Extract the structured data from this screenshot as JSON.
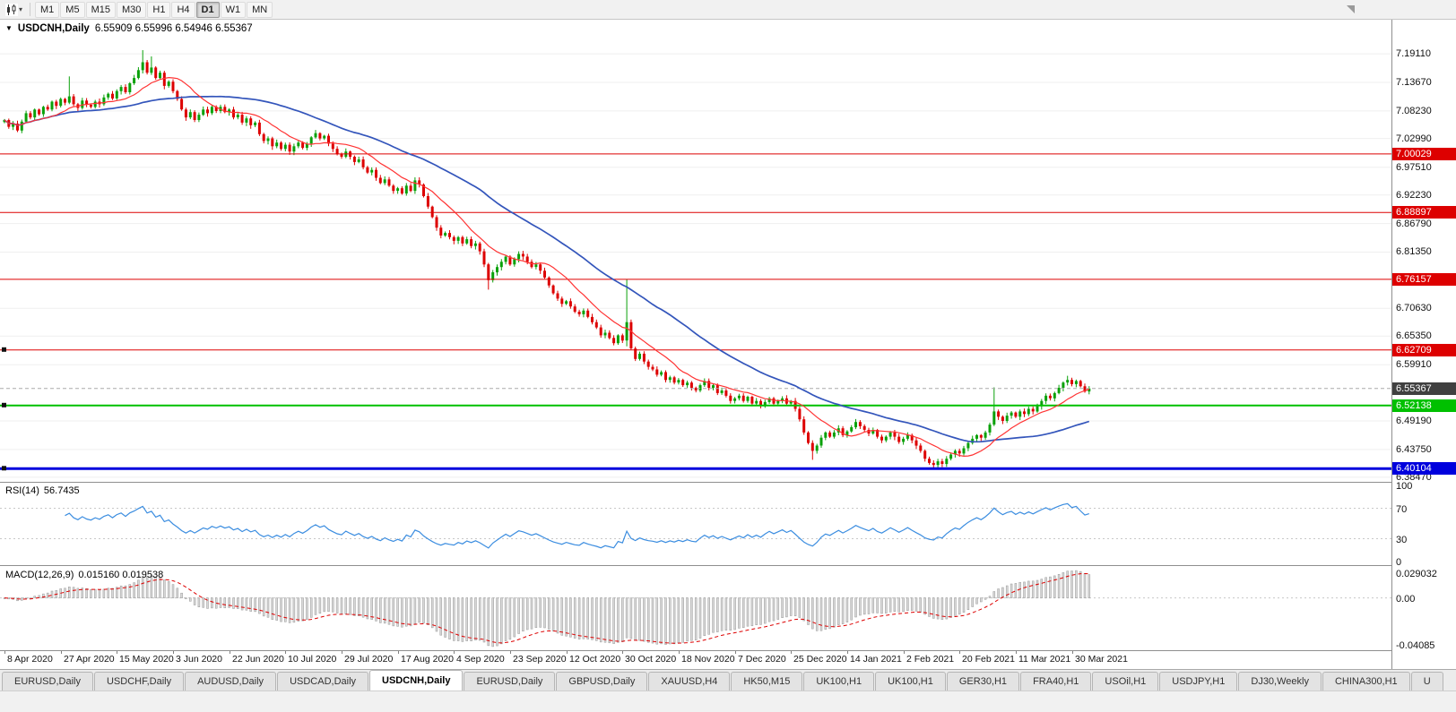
{
  "toolbar": {
    "timeframes": [
      {
        "label": "M1",
        "active": false
      },
      {
        "label": "M5",
        "active": false
      },
      {
        "label": "M15",
        "active": false
      },
      {
        "label": "M30",
        "active": false
      },
      {
        "label": "H1",
        "active": false
      },
      {
        "label": "H4",
        "active": false
      },
      {
        "label": "D1",
        "active": true
      },
      {
        "label": "W1",
        "active": false
      },
      {
        "label": "MN",
        "active": false
      }
    ]
  },
  "chart": {
    "symbol_title": "USDCNH,Daily",
    "ohlc_line": "6.55909 6.55996 6.54946 6.55367",
    "current_price": "6.55367",
    "price_axis_labels": [
      "7.19110",
      "7.13670",
      "7.08230",
      "7.02990",
      "6.97510",
      "6.92230",
      "6.86790",
      "6.81350",
      "6.70630",
      "6.65350",
      "6.59910",
      "6.49190",
      "6.43750",
      "6.38470"
    ],
    "hlines": [
      {
        "label": "7.00029",
        "price": 7.00029,
        "color": "#dd0000",
        "width": 1,
        "handle": false
      },
      {
        "label": "6.88897",
        "price": 6.88897,
        "color": "#dd0000",
        "width": 1,
        "handle": false
      },
      {
        "label": "6.76157",
        "price": 6.76157,
        "color": "#dd0000",
        "width": 1,
        "handle": false
      },
      {
        "label": "6.62709",
        "price": 6.62709,
        "color": "#dd0000",
        "width": 1,
        "handle": true
      },
      {
        "label": "6.52138",
        "price": 6.52138,
        "color": "#00c000",
        "width": 2,
        "handle": true
      },
      {
        "label": "6.40104",
        "price": 6.40104,
        "color": "#0000dd",
        "width": 3,
        "handle": true
      }
    ],
    "colors": {
      "up": "#0aa10a",
      "down": "#dd0000",
      "ma_fast": "#ff3333",
      "ma_slow": "#3355bb",
      "rsi": "#3b8de0",
      "macd_hist_fill": "#d8d8d8",
      "macd_hist_stroke": "#979797",
      "macd_signal": "#dd0000",
      "current_badge_bg": "#404040"
    }
  },
  "chart_data": {
    "type": "candlestick",
    "title": "USDCNH,Daily",
    "x_labels": [
      "8 Apr 2020",
      "27 Apr 2020",
      "15 May 2020",
      "3 Jun 2020",
      "22 Jun 2020",
      "10 Jul 2020",
      "29 Jul 2020",
      "17 Aug 2020",
      "4 Sep 2020",
      "23 Sep 2020",
      "12 Oct 2020",
      "30 Oct 2020",
      "18 Nov 2020",
      "7 Dec 2020",
      "25 Dec 2020",
      "14 Jan 2021",
      "2 Feb 2021",
      "20 Feb 2021",
      "11 Mar 2021",
      "30 Mar 2021"
    ],
    "bars_per_label": 13,
    "y_range": [
      6.376,
      7.256
    ],
    "closes": [
      7.065,
      7.052,
      7.058,
      7.045,
      7.062,
      7.078,
      7.07,
      7.085,
      7.076,
      7.09,
      7.085,
      7.1,
      7.092,
      7.105,
      7.098,
      7.11,
      7.095,
      7.088,
      7.102,
      7.094,
      7.09,
      7.1,
      7.095,
      7.108,
      7.115,
      7.106,
      7.12,
      7.128,
      7.118,
      7.135,
      7.145,
      7.16,
      7.175,
      7.155,
      7.165,
      7.145,
      7.155,
      7.13,
      7.138,
      7.12,
      7.105,
      7.085,
      7.07,
      7.08,
      7.065,
      7.075,
      7.085,
      7.078,
      7.09,
      7.082,
      7.09,
      7.08,
      7.085,
      7.07,
      7.075,
      7.06,
      7.068,
      7.055,
      7.06,
      7.038,
      7.025,
      7.03,
      7.015,
      7.022,
      7.01,
      7.018,
      7.005,
      7.015,
      7.022,
      7.012,
      7.02,
      7.032,
      7.04,
      7.03,
      7.035,
      7.02,
      7.01,
      7.0,
      6.995,
      7.005,
      6.995,
      6.985,
      6.99,
      6.975,
      6.965,
      6.97,
      6.955,
      6.945,
      6.952,
      6.94,
      6.93,
      6.935,
      6.925,
      6.94,
      6.93,
      6.95,
      6.942,
      6.92,
      6.9,
      6.88,
      6.86,
      6.845,
      6.85,
      6.842,
      6.835,
      6.842,
      6.83,
      6.838,
      6.825,
      6.83,
      6.815,
      6.79,
      6.76,
      6.775,
      6.785,
      6.795,
      6.805,
      6.79,
      6.8,
      6.81,
      6.805,
      6.795,
      6.785,
      6.79,
      6.778,
      6.765,
      6.75,
      6.735,
      6.725,
      6.715,
      6.72,
      6.71,
      6.7,
      6.695,
      6.702,
      6.69,
      6.68,
      6.67,
      6.655,
      6.66,
      6.65,
      6.64,
      6.655,
      6.645,
      6.68,
      6.63,
      6.61,
      6.62,
      6.605,
      6.595,
      6.59,
      6.58,
      6.585,
      6.57,
      6.575,
      6.565,
      6.57,
      6.56,
      6.565,
      6.555,
      6.55,
      6.56,
      6.568,
      6.555,
      6.56,
      6.545,
      6.55,
      6.54,
      6.53,
      6.535,
      6.54,
      6.53,
      6.538,
      6.525,
      6.53,
      6.52,
      6.528,
      6.535,
      6.525,
      6.53,
      6.535,
      6.525,
      6.53,
      6.515,
      6.495,
      6.47,
      6.45,
      6.435,
      6.445,
      6.46,
      6.47,
      6.462,
      6.47,
      6.478,
      6.465,
      6.472,
      6.48,
      6.49,
      6.482,
      6.475,
      6.468,
      6.475,
      6.462,
      6.455,
      6.462,
      6.47,
      6.462,
      6.452,
      6.458,
      6.465,
      6.455,
      6.445,
      6.435,
      6.42,
      6.412,
      6.408,
      6.415,
      6.41,
      6.42,
      6.428,
      6.435,
      6.43,
      6.44,
      6.45,
      6.458,
      6.465,
      6.46,
      6.47,
      6.485,
      6.51,
      6.5,
      6.492,
      6.502,
      6.508,
      6.5,
      6.51,
      6.505,
      6.515,
      6.51,
      6.52,
      6.53,
      6.54,
      6.535,
      6.545,
      6.555,
      6.565,
      6.57,
      6.562,
      6.568,
      6.558,
      6.548,
      6.5537
    ],
    "wick_spikes": [
      {
        "i": 15,
        "high": 7.148
      },
      {
        "i": 32,
        "high": 7.198
      },
      {
        "i": 34,
        "high": 7.186
      },
      {
        "i": 112,
        "low": 6.742
      },
      {
        "i": 144,
        "high": 6.762,
        "low": 6.634
      },
      {
        "i": 187,
        "low": 6.418
      },
      {
        "i": 215,
        "low": 6.4
      },
      {
        "i": 217,
        "low": 6.404
      },
      {
        "i": 229,
        "high": 6.556
      },
      {
        "i": 246,
        "high": 6.578
      }
    ],
    "overlays": [
      {
        "name": "moving-average-fast",
        "period": 12
      },
      {
        "name": "moving-average-slow",
        "period": 40
      }
    ],
    "indicators": [
      {
        "type": "RSI",
        "label": "RSI(14)",
        "period": 14,
        "current_value": "56.7435",
        "axis_labels": [
          "100",
          "70",
          "30",
          "0"
        ],
        "levels": [
          70,
          30
        ]
      },
      {
        "type": "MACD",
        "label": "MACD(12,26,9)",
        "fast": 12,
        "slow": 26,
        "signal": 9,
        "current_values": "0.015160 0.019538",
        "axis_labels": [
          "0.029032",
          "0.00",
          "-0.04085"
        ]
      }
    ]
  },
  "tabs": {
    "active_index": 4,
    "items": [
      "EURUSD,Daily",
      "USDCHF,Daily",
      "AUDUSD,Daily",
      "USDCAD,Daily",
      "USDCNH,Daily",
      "EURUSD,Daily",
      "GBPUSD,Daily",
      "XAUUSD,H4",
      "HK50,M15",
      "UK100,H1",
      "UK100,H1",
      "GER30,H1",
      "FRA40,H1",
      "USOil,H1",
      "USDJPY,H1",
      "DJ30,Weekly",
      "CHINA300,H1",
      "U"
    ]
  }
}
